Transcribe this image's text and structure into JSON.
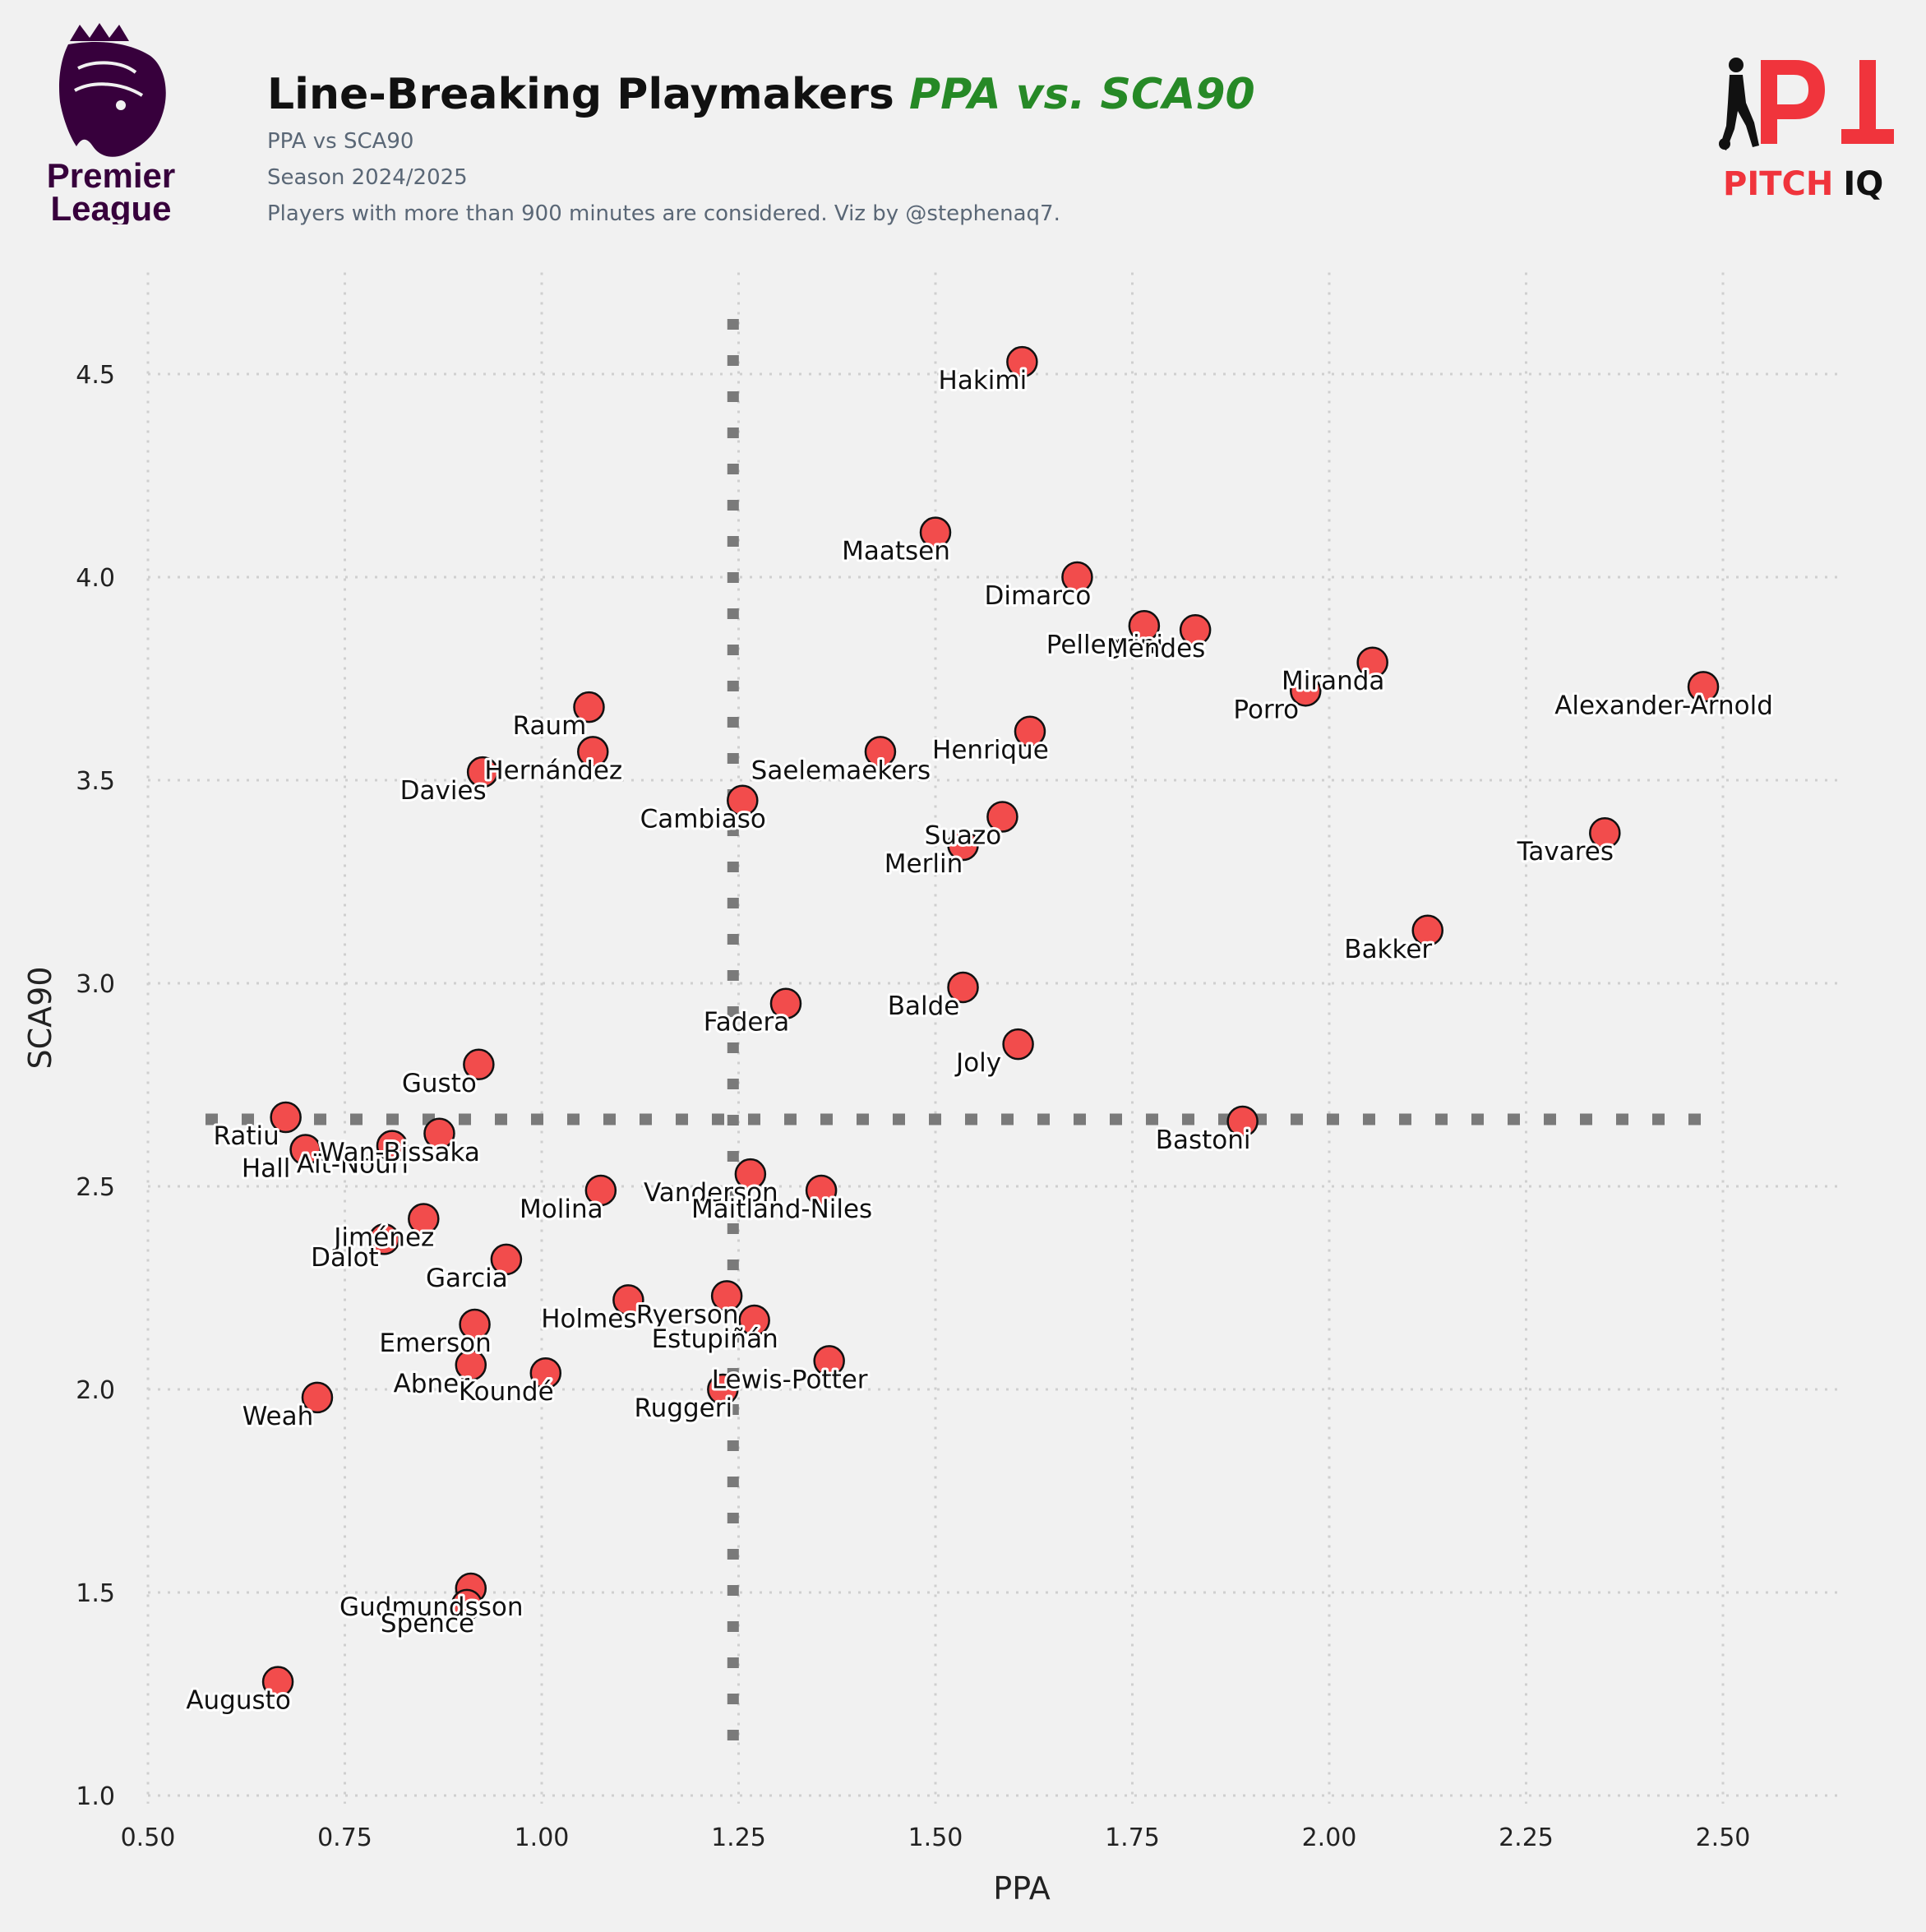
{
  "header": {
    "title_main": "Line-Breaking Playmakers",
    "title_accent": "PPA vs. SCA90",
    "subtitle_1": "PPA vs SCA90",
    "subtitle_2": "Season 2024/2025",
    "subtitle_3": "Players with more than 900 minutes are considered. Viz by @stephenaq7."
  },
  "logos": {
    "premier_league_line1": "Premier",
    "premier_league_line2": "League",
    "pitchiq_word1": "PITCH",
    "pitchiq_word2": "IQ"
  },
  "colors": {
    "point_fill": "#f24c4c",
    "point_edge": "#111111",
    "reference_line": "#7a7a7a",
    "grid": "#cfcfcf",
    "accent": "#268926",
    "pl_purple": "#37003c",
    "piq_red": "#f0343c"
  },
  "chart_data": {
    "type": "scatter",
    "xlabel": "PPA",
    "ylabel": "SCA90",
    "xlim": [
      0.5,
      2.65
    ],
    "ylim": [
      0.98,
      4.75
    ],
    "xticks": [
      "0.50",
      "0.75",
      "1.00",
      "1.25",
      "1.50",
      "1.75",
      "2.00",
      "2.25",
      "2.50"
    ],
    "yticks": [
      "1.0",
      "1.5",
      "2.0",
      "2.5",
      "3.0",
      "3.5",
      "4.0",
      "4.5"
    ],
    "grid": true,
    "reference_lines": {
      "x": 1.243,
      "y": 2.665
    },
    "points": [
      {
        "name": "Hakimi",
        "x": 1.61,
        "y": 4.53
      },
      {
        "name": "Maatsen",
        "x": 1.5,
        "y": 4.11
      },
      {
        "name": "Dimarco",
        "x": 1.68,
        "y": 4.0
      },
      {
        "name": "Pellegrini",
        "x": 1.765,
        "y": 3.88
      },
      {
        "name": "Mendes",
        "x": 1.83,
        "y": 3.87
      },
      {
        "name": "Miranda",
        "x": 2.055,
        "y": 3.79
      },
      {
        "name": "Porro",
        "x": 1.97,
        "y": 3.72
      },
      {
        "name": "Alexander-Arnold",
        "x": 2.475,
        "y": 3.73
      },
      {
        "name": "Raum",
        "x": 1.06,
        "y": 3.68
      },
      {
        "name": "Hernández",
        "x": 1.065,
        "y": 3.57
      },
      {
        "name": "Davies",
        "x": 0.925,
        "y": 3.52
      },
      {
        "name": "Saelemaekers",
        "x": 1.43,
        "y": 3.57
      },
      {
        "name": "Henrique",
        "x": 1.62,
        "y": 3.62
      },
      {
        "name": "Cambiaso",
        "x": 1.255,
        "y": 3.45
      },
      {
        "name": "Suazo",
        "x": 1.585,
        "y": 3.41
      },
      {
        "name": "Merlin",
        "x": 1.535,
        "y": 3.34
      },
      {
        "name": "Tavares",
        "x": 2.35,
        "y": 3.37
      },
      {
        "name": "Bakker",
        "x": 2.125,
        "y": 3.13
      },
      {
        "name": "Balde",
        "x": 1.535,
        "y": 2.99
      },
      {
        "name": "Fadera",
        "x": 1.31,
        "y": 2.95
      },
      {
        "name": "Joly",
        "x": 1.605,
        "y": 2.85
      },
      {
        "name": "Gusto",
        "x": 0.92,
        "y": 2.8
      },
      {
        "name": "Ratiu",
        "x": 0.675,
        "y": 2.67
      },
      {
        "name": "Hall",
        "x": 0.7,
        "y": 2.59
      },
      {
        "name": "Aït-Nouri",
        "x": 0.81,
        "y": 2.6
      },
      {
        "name": "Wan-Bissaka",
        "x": 0.87,
        "y": 2.63
      },
      {
        "name": "Bastoni",
        "x": 1.89,
        "y": 2.66
      },
      {
        "name": "Molina",
        "x": 1.075,
        "y": 2.49
      },
      {
        "name": "Vanderson",
        "x": 1.265,
        "y": 2.53
      },
      {
        "name": "Maitland-Niles",
        "x": 1.355,
        "y": 2.49
      },
      {
        "name": "Jiménez",
        "x": 0.85,
        "y": 2.42
      },
      {
        "name": "Dalot",
        "x": 0.8,
        "y": 2.37
      },
      {
        "name": "Garcia",
        "x": 0.955,
        "y": 2.32
      },
      {
        "name": "Holmes",
        "x": 1.11,
        "y": 2.22
      },
      {
        "name": "Ryerson",
        "x": 1.235,
        "y": 2.23
      },
      {
        "name": "Estupiñán",
        "x": 1.27,
        "y": 2.17
      },
      {
        "name": "Emerson",
        "x": 0.915,
        "y": 2.16
      },
      {
        "name": "Abner",
        "x": 0.91,
        "y": 2.06
      },
      {
        "name": "Koundé",
        "x": 1.005,
        "y": 2.04
      },
      {
        "name": "Lewis-Potter",
        "x": 1.365,
        "y": 2.07
      },
      {
        "name": "Ruggeri",
        "x": 1.23,
        "y": 2.0
      },
      {
        "name": "Weah",
        "x": 0.715,
        "y": 1.98
      },
      {
        "name": "Gudmundsson",
        "x": 0.91,
        "y": 1.51
      },
      {
        "name": "Spence",
        "x": 0.905,
        "y": 1.47
      },
      {
        "name": "Augusto",
        "x": 0.665,
        "y": 1.28
      }
    ]
  }
}
